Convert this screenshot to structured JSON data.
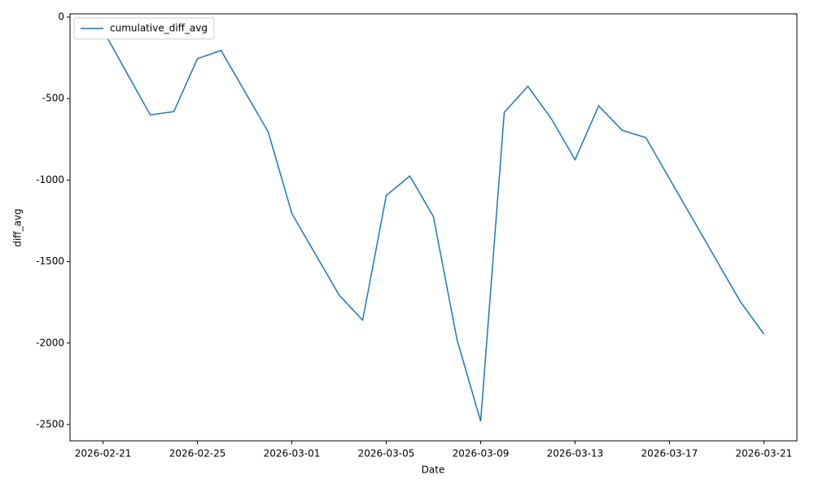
{
  "chart_data": {
    "type": "line",
    "xlabel": "Date",
    "ylabel": "diff_avg",
    "x": [
      "2026-02-21",
      "2026-02-23",
      "2026-02-24",
      "2026-02-25",
      "2026-02-26",
      "2026-02-28",
      "2026-03-01",
      "2026-03-03",
      "2026-03-04",
      "2026-03-05",
      "2026-03-06",
      "2026-03-07",
      "2026-03-08",
      "2026-03-09",
      "2026-03-10",
      "2026-03-11",
      "2026-03-12",
      "2026-03-13",
      "2026-03-14",
      "2026-03-15",
      "2026-03-16",
      "2026-03-20",
      "2026-03-21"
    ],
    "series": [
      {
        "name": "cumulative_diff_avg",
        "color": "#1f77b4",
        "values": [
          -80,
          -600,
          -580,
          -255,
          -205,
          -705,
          -1205,
          -1705,
          -1860,
          -1095,
          -975,
          -1225,
          -1980,
          -2480,
          -585,
          -425,
          -625,
          -875,
          -545,
          -695,
          -740,
          -1745,
          -1945
        ]
      }
    ],
    "xlim": [
      "2026-02-19T14:24",
      "2026-03-22T09:36"
    ],
    "xticks": [
      "2026-02-21",
      "2026-02-25",
      "2026-03-01",
      "2026-03-05",
      "2026-03-09",
      "2026-03-13",
      "2026-03-17",
      "2026-03-21"
    ],
    "ylim": [
      -2600,
      20
    ],
    "yticks": [
      0,
      -500,
      -1000,
      -1500,
      -2000,
      -2500
    ],
    "legend": "upper left"
  }
}
